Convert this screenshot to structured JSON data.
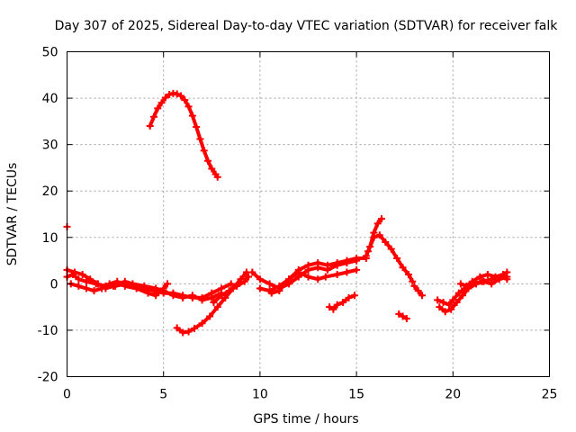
{
  "chart_data": {
    "type": "scatter",
    "title": "Day 307 of 2025, Sidereal Day-to-day VTEC variation (SDTVAR) for receiver falk",
    "xlabel": "GPS time / hours",
    "ylabel": "SDTVAR / TECUs",
    "xlim": [
      0,
      25
    ],
    "ylim": [
      -20,
      50
    ],
    "xticks": [
      0,
      5,
      10,
      15,
      20,
      25
    ],
    "yticks": [
      -20,
      -10,
      0,
      10,
      20,
      30,
      40,
      50
    ],
    "grid": true,
    "color": "#ff0000",
    "series": [
      {
        "name": "track-low-1",
        "points": [
          [
            0,
            1.5
          ],
          [
            0.3,
            2
          ],
          [
            0.6,
            1
          ],
          [
            1,
            0.5
          ],
          [
            1.5,
            0
          ],
          [
            2,
            -0.5
          ],
          [
            2.5,
            -0.5
          ],
          [
            3,
            0
          ],
          [
            3.5,
            -0.5
          ],
          [
            4,
            -1
          ],
          [
            4.5,
            -1.5
          ],
          [
            5,
            -2
          ],
          [
            5.5,
            -2
          ],
          [
            6,
            -2.5
          ],
          [
            6.5,
            -3
          ],
          [
            7,
            -3
          ],
          [
            7.5,
            -2
          ],
          [
            8,
            -1
          ],
          [
            8.5,
            0
          ]
        ]
      },
      {
        "name": "track-low-2",
        "points": [
          [
            0,
            3
          ],
          [
            0.4,
            2.5
          ],
          [
            0.8,
            2
          ],
          [
            1.2,
            1
          ],
          [
            1.6,
            0
          ],
          [
            2,
            -1
          ],
          [
            2.4,
            -0.5
          ],
          [
            3,
            0.5
          ],
          [
            3.4,
            0
          ],
          [
            4,
            -0.5
          ],
          [
            4.6,
            -1
          ],
          [
            5,
            -1.5
          ],
          [
            5.5,
            -2.5
          ],
          [
            6,
            -3
          ],
          [
            6.5,
            -2.5
          ],
          [
            7,
            -3.5
          ],
          [
            7.5,
            -3
          ],
          [
            8,
            -2
          ]
        ]
      },
      {
        "name": "track-low-3",
        "points": [
          [
            0.2,
            0
          ],
          [
            0.6,
            -0.5
          ],
          [
            1,
            -1
          ],
          [
            1.4,
            -1.5
          ],
          [
            1.8,
            -1
          ],
          [
            2.2,
            0
          ],
          [
            2.6,
            0.5
          ],
          [
            3,
            -0.5
          ],
          [
            3.6,
            -1
          ],
          [
            4.2,
            -2
          ],
          [
            4.6,
            -2.5
          ],
          [
            5,
            -1
          ],
          [
            5.2,
            0
          ]
        ]
      },
      {
        "name": "early-point",
        "points": [
          [
            0,
            12.3
          ]
        ]
      },
      {
        "name": "arc-high",
        "points": [
          [
            4.3,
            34
          ],
          [
            4.5,
            36
          ],
          [
            4.7,
            37.8
          ],
          [
            4.9,
            39
          ],
          [
            5.1,
            40.1
          ],
          [
            5.3,
            40.8
          ],
          [
            5.5,
            41
          ],
          [
            5.7,
            40.9
          ],
          [
            5.9,
            40.5
          ],
          [
            6.1,
            39.6
          ],
          [
            6.3,
            38.2
          ],
          [
            6.5,
            36.2
          ],
          [
            6.7,
            33.8
          ],
          [
            6.9,
            31.2
          ],
          [
            7.1,
            28.7
          ],
          [
            7.3,
            26.5
          ],
          [
            7.5,
            24.8
          ],
          [
            7.7,
            23.6
          ],
          [
            7.8,
            23
          ]
        ]
      },
      {
        "name": "rise-from-dip",
        "points": [
          [
            5.7,
            -9.5
          ],
          [
            6,
            -10.5
          ],
          [
            6.3,
            -10.3
          ],
          [
            6.6,
            -9.6
          ],
          [
            7,
            -8.5
          ],
          [
            7.4,
            -7
          ],
          [
            7.8,
            -5
          ],
          [
            8.2,
            -3
          ],
          [
            8.6,
            -1
          ],
          [
            9,
            1
          ],
          [
            9.3,
            2.5
          ]
        ]
      },
      {
        "name": "rise-from-dip-2",
        "points": [
          [
            7.6,
            -4
          ],
          [
            8,
            -2.5
          ],
          [
            8.4,
            -1.5
          ],
          [
            8.8,
            -0.5
          ],
          [
            9.2,
            0.5
          ],
          [
            9.4,
            1.5
          ]
        ]
      },
      {
        "name": "track-mid-1",
        "points": [
          [
            10,
            -1
          ],
          [
            10.5,
            -1.5
          ],
          [
            11,
            -0.5
          ],
          [
            11.5,
            1
          ],
          [
            12,
            3
          ],
          [
            12.5,
            4
          ],
          [
            13,
            4.5
          ],
          [
            13.5,
            4
          ],
          [
            14,
            4.5
          ],
          [
            14.5,
            5
          ],
          [
            15,
            5.5
          ],
          [
            15.5,
            5.5
          ]
        ]
      },
      {
        "name": "track-mid-2",
        "points": [
          [
            9.6,
            2.5
          ],
          [
            10,
            1
          ],
          [
            10.5,
            0
          ],
          [
            11,
            -1
          ],
          [
            11.5,
            0
          ],
          [
            12,
            1.5
          ],
          [
            12.5,
            3
          ],
          [
            13,
            3.5
          ],
          [
            13.5,
            3
          ],
          [
            14,
            4
          ],
          [
            14.5,
            4.5
          ],
          [
            15,
            5
          ]
        ]
      },
      {
        "name": "track-mid-3",
        "points": [
          [
            10.6,
            -2
          ],
          [
            11,
            -1.5
          ],
          [
            11.5,
            1
          ],
          [
            12,
            2.5
          ],
          [
            12.5,
            1.5
          ],
          [
            13,
            1
          ],
          [
            13.4,
            1.5
          ],
          [
            14,
            2
          ],
          [
            14.5,
            2.5
          ],
          [
            15,
            3
          ]
        ]
      },
      {
        "name": "peak-track",
        "points": [
          [
            15.5,
            6
          ],
          [
            15.7,
            8
          ],
          [
            15.9,
            11
          ],
          [
            16.1,
            13
          ],
          [
            16.3,
            14
          ]
        ]
      },
      {
        "name": "peak-descent",
        "points": [
          [
            15.6,
            7
          ],
          [
            15.9,
            10
          ],
          [
            16.2,
            10.5
          ],
          [
            16.5,
            9
          ],
          [
            16.8,
            7.5
          ],
          [
            17.1,
            5.5
          ],
          [
            17.4,
            3.5
          ],
          [
            17.7,
            2
          ],
          [
            17.9,
            0.5
          ]
        ]
      },
      {
        "name": "dip-segment-a",
        "points": [
          [
            13.6,
            -5
          ],
          [
            13.8,
            -5.5
          ],
          [
            14,
            -4.5
          ],
          [
            14.3,
            -4
          ],
          [
            14.6,
            -3
          ],
          [
            14.9,
            -2.5
          ]
        ]
      },
      {
        "name": "dip-segment-b",
        "points": [
          [
            17.2,
            -6.5
          ],
          [
            17.4,
            -7
          ],
          [
            17.6,
            -7.5
          ]
        ]
      },
      {
        "name": "mid-descent",
        "points": [
          [
            18,
            -0.5
          ],
          [
            18.2,
            -1.5
          ],
          [
            18.4,
            -2.5
          ]
        ]
      },
      {
        "name": "track-late-1",
        "points": [
          [
            19.2,
            -3.5
          ],
          [
            19.5,
            -4
          ],
          [
            19.8,
            -4.5
          ],
          [
            20,
            -3.5
          ],
          [
            20.3,
            -2
          ],
          [
            20.6,
            -1
          ],
          [
            21,
            0
          ],
          [
            21.5,
            0.5
          ],
          [
            22,
            1
          ],
          [
            22.5,
            1.5
          ],
          [
            22.8,
            1
          ]
        ]
      },
      {
        "name": "track-late-2",
        "points": [
          [
            19.3,
            -5
          ],
          [
            19.6,
            -6
          ],
          [
            19.9,
            -5.5
          ],
          [
            20.2,
            -4
          ],
          [
            20.5,
            -2.5
          ],
          [
            20.8,
            -1
          ],
          [
            21.2,
            0
          ],
          [
            21.6,
            0.5
          ],
          [
            22,
            0
          ],
          [
            22.4,
            1
          ],
          [
            22.8,
            1.5
          ]
        ]
      },
      {
        "name": "track-late-3",
        "points": [
          [
            20.4,
            0
          ],
          [
            20.7,
            -0.5
          ],
          [
            21,
            0.5
          ],
          [
            21.4,
            1.5
          ],
          [
            21.8,
            2
          ],
          [
            22.2,
            1.5
          ],
          [
            22.6,
            2
          ],
          [
            22.8,
            2.5
          ]
        ]
      }
    ]
  }
}
